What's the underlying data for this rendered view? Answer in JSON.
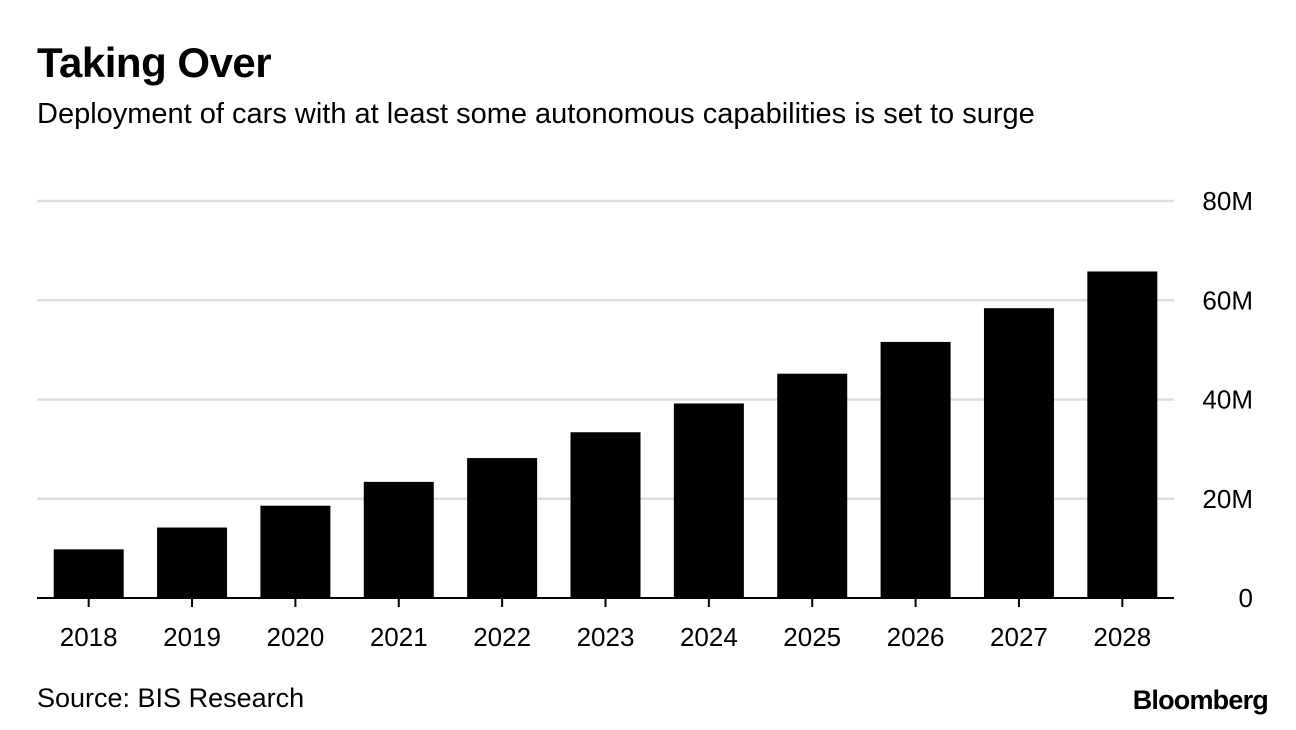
{
  "header": {
    "title": "Taking Over",
    "subtitle": "Deployment of cars with at least some autonomous capabilities is set to surge"
  },
  "footer": {
    "source": "Source: BIS Research",
    "brand": "Bloomberg"
  },
  "colors": {
    "bar": "#000000",
    "gridline": "#dddddd",
    "axis": "#000000",
    "background": "#ffffff"
  },
  "chart_data": {
    "type": "bar",
    "title": "Taking Over",
    "subtitle": "Deployment of cars with at least some autonomous capabilities is set to surge",
    "xlabel": "",
    "ylabel": "",
    "categories": [
      "2018",
      "2019",
      "2020",
      "2021",
      "2022",
      "2023",
      "2024",
      "2025",
      "2026",
      "2027",
      "2028"
    ],
    "values": [
      9.8,
      14.2,
      18.6,
      23.4,
      28.2,
      33.4,
      39.2,
      45.2,
      51.6,
      58.4,
      65.8
    ],
    "value_unit": "millions of cars",
    "ylim": [
      0,
      80
    ],
    "yticks": [
      0,
      20,
      40,
      60,
      80
    ],
    "ytick_labels": [
      "0",
      "20M",
      "40M",
      "60M",
      "80M"
    ],
    "y_axis_side": "right",
    "grid": true,
    "legend": "none"
  }
}
